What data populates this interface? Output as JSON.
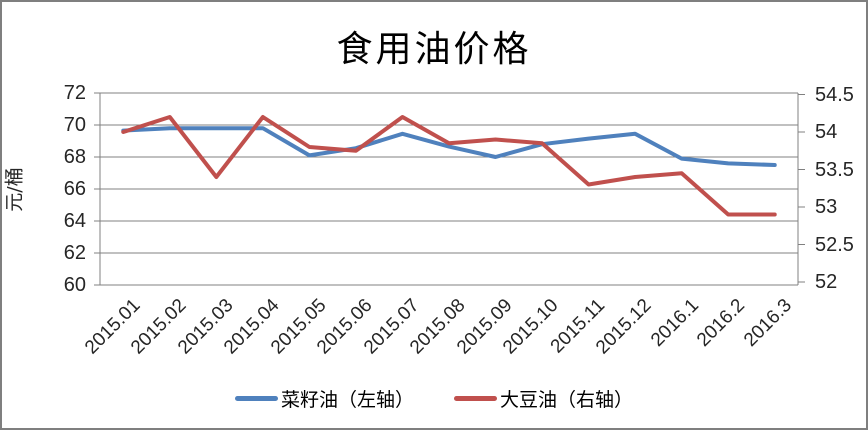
{
  "chart_data": {
    "type": "line",
    "title": "食用油价格",
    "categories": [
      "2015.01",
      "2015.02",
      "2015.03",
      "2015.04",
      "2015.05",
      "2015.06",
      "2015.07",
      "2015.08",
      "2015.09",
      "2015.10",
      "2015.11",
      "2015.12",
      "2016.1",
      "2016.2",
      "2016.3"
    ],
    "series": [
      {
        "name": "菜籽油（左轴）",
        "axis": "left",
        "color": "#4F81BD",
        "values": [
          69.65,
          69.8,
          69.8,
          69.8,
          68.1,
          68.55,
          69.45,
          68.65,
          68.0,
          68.8,
          69.15,
          69.45,
          67.9,
          67.6,
          67.5
        ]
      },
      {
        "name": "大豆油（右轴）",
        "axis": "right",
        "color": "#C0504D",
        "values": [
          54.0,
          54.2,
          53.4,
          54.2,
          53.8,
          53.75,
          54.2,
          53.85,
          53.9,
          53.85,
          53.3,
          53.4,
          53.45,
          52.9,
          52.9
        ]
      }
    ],
    "left_axis": {
      "title": "元/桶",
      "min": 60,
      "max": 72,
      "step": 2,
      "tick_labels": [
        "72",
        "70",
        "68",
        "66",
        "64",
        "62",
        "60"
      ]
    },
    "right_axis": {
      "min": 52,
      "max": 54.5,
      "step": 0.5,
      "tick_labels": [
        "54.5",
        "54",
        "53.5",
        "53",
        "52.5",
        "52"
      ]
    },
    "legend_position": "bottom",
    "grid": "horizontal-only",
    "colors": {
      "gridline": "#808080",
      "axis": "#808080",
      "border": "#7F7F7F",
      "text": "#262626"
    }
  }
}
